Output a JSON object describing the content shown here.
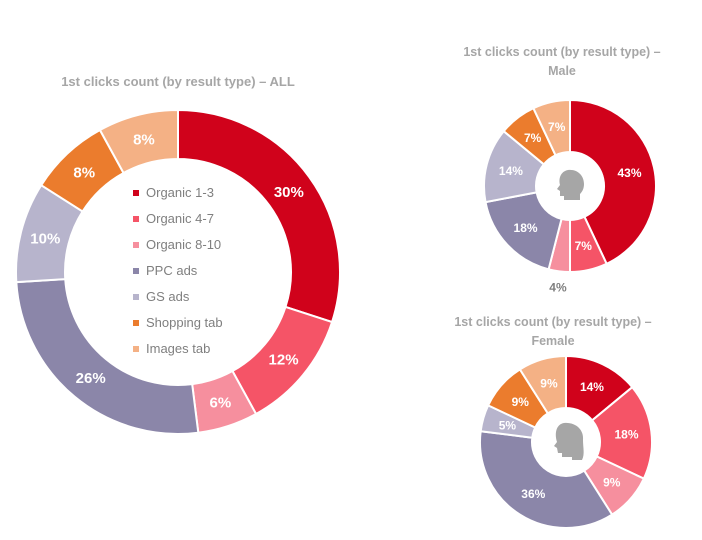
{
  "colors": {
    "Organic 1-3": "#d0021b",
    "Organic 4-7": "#f55467",
    "Organic 8-10": "#f68f9e",
    "PPC ads": "#8b86a9",
    "GS ads": "#b7b4cc",
    "Shopping tab": "#eb7c2d",
    "Images tab": "#f4b185"
  },
  "chart_data": [
    {
      "type": "pie",
      "variant": "donut",
      "title": "1st clicks count (by result type) – ALL",
      "categories": [
        "Organic 1-3",
        "Organic 4-7",
        "Organic 8-10",
        "PPC ads",
        "GS ads",
        "Shopping tab",
        "Images tab"
      ],
      "values": [
        30,
        12,
        6,
        26,
        10,
        8,
        8
      ],
      "labels": [
        "30%",
        "12%",
        "6%",
        "26%",
        "10%",
        "8%",
        "8%"
      ],
      "legend": "center"
    },
    {
      "type": "pie",
      "variant": "donut",
      "title_lines": [
        "1st clicks count (by result type) –",
        "Male"
      ],
      "categories": [
        "Organic 1-3",
        "Organic 4-7",
        "Organic 8-10",
        "PPC ads",
        "GS ads",
        "Shopping tab",
        "Images tab"
      ],
      "values": [
        43,
        7,
        4,
        18,
        14,
        7,
        7
      ],
      "labels": [
        "43%",
        "7%",
        "4%",
        "18%",
        "14%",
        "7%",
        "7%"
      ],
      "center_icon": "male-head-icon"
    },
    {
      "type": "pie",
      "variant": "donut",
      "title_lines": [
        "1st clicks count (by result type) –",
        "Female"
      ],
      "categories": [
        "Organic 1-3",
        "Organic 4-7",
        "Organic 8-10",
        "PPC ads",
        "GS ads",
        "Shopping tab",
        "Images tab"
      ],
      "values": [
        14,
        18,
        9,
        36,
        5,
        9,
        9
      ],
      "labels": [
        "14%",
        "18%",
        "9%",
        "36%",
        "5%",
        "9%",
        "9%"
      ],
      "center_icon": "female-head-icon"
    }
  ]
}
